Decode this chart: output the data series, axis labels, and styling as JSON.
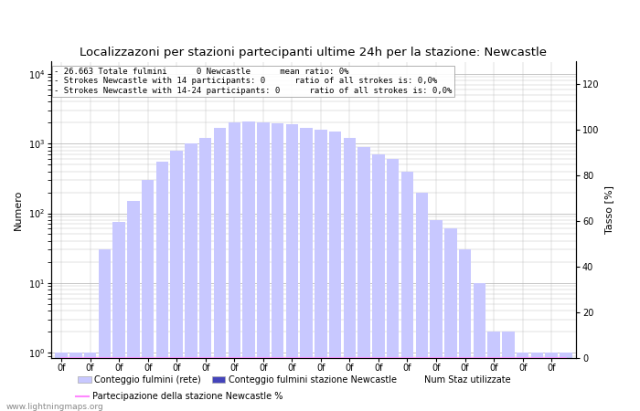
{
  "title": "Localizzazoni per stazioni partecipanti ultime 24h per la stazione: Newcastle",
  "ylabel_left": "Numero",
  "ylabel_right": "Tasso [%]",
  "annotation_lines": [
    "26.663 Totale fulmini      0 Newcastle      mean ratio: 0%",
    "Strokes Newcastle with 14 participants: 0      ratio of all strokes is: 0,0%",
    "Strokes Newcastle with 14-24 participants: 0      ratio of all strokes is: 0,0%"
  ],
  "light_vals": [
    1,
    1,
    1,
    30,
    75,
    150,
    300,
    550,
    800,
    1000,
    1200,
    1700,
    2000,
    2100,
    2000,
    1950,
    1900,
    1700,
    1600,
    1500,
    1200,
    900,
    700,
    600,
    400,
    200,
    80,
    60,
    30,
    10,
    2,
    2,
    1,
    1,
    1,
    1
  ],
  "dark_vals": [
    0,
    0,
    0,
    0,
    0,
    0,
    0,
    0,
    0,
    0,
    0,
    0,
    0,
    0,
    0,
    0,
    0,
    0,
    0,
    0,
    0,
    0,
    0,
    0,
    0,
    0,
    0,
    0,
    0,
    0,
    0,
    0,
    0,
    0,
    0,
    0
  ],
  "bar_color_light": "#c8c8ff",
  "bar_color_dark": "#4444bb",
  "line_color": "#ff88ff",
  "grid_color": "#bbbbbb",
  "background_color": "#ffffff",
  "right_yticks": [
    0,
    20,
    40,
    60,
    80,
    100,
    120
  ],
  "watermark": "www.lightningmaps.org",
  "legend_label_light": "Conteggio fulmini (rete)",
  "legend_label_dark": "Conteggio fulmini stazione Newcastle",
  "legend_label_num": "Num Staz utilizzate",
  "legend_label_line": "Partecipazione della stazione Newcastle %"
}
